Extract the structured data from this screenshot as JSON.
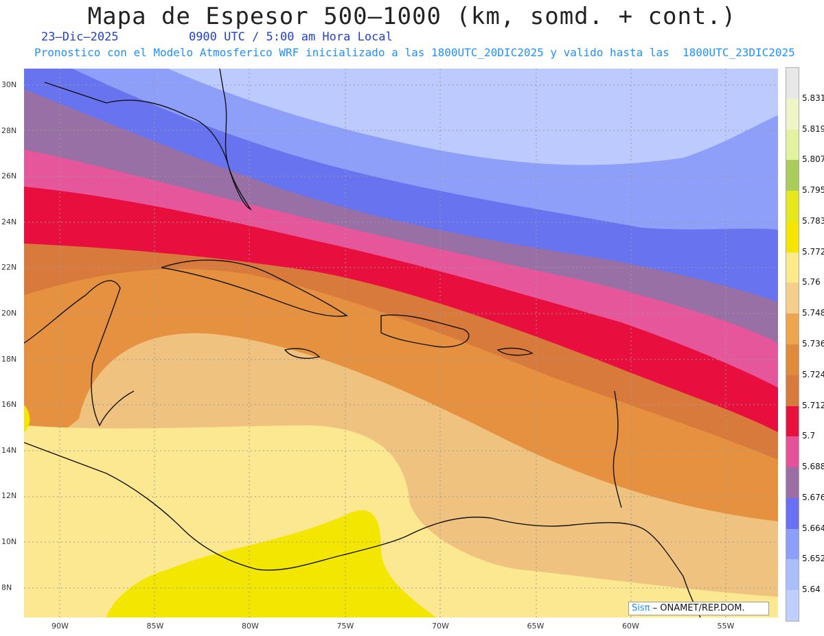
{
  "title": "Mapa de Espesor 500–1000 (km, somd. + cont.)",
  "date": "23–Dic–2025",
  "time": "0900 UTC / 5:00 am Hora Local",
  "subtitle": "Pronostico con el Modelo Atmosferico WRF inicializado a las 1800UTC_20DIC2025 y valido hasta las  1800UTC_23DIC2025",
  "credit": {
    "brand": "Sisπ",
    "text": "– ONAMET/REP.DOM."
  },
  "lat_labels": [
    "30N",
    "28N",
    "26N",
    "24N",
    "22N",
    "20N",
    "18N",
    "16N",
    "14N",
    "12N",
    "10N",
    "8N"
  ],
  "lon_labels": [
    "90W",
    "85W",
    "80W",
    "75W",
    "70W",
    "65W",
    "60W",
    "55W"
  ],
  "colorbar": {
    "labels": [
      "5.831",
      "5.819",
      "5.807",
      "5.795",
      "5.783",
      "5.772",
      "5.76",
      "5.748",
      "5.736",
      "5.724",
      "5.712",
      "5.7",
      "5.688",
      "5.676",
      "5.664",
      "5.652",
      "5.64"
    ],
    "colors": [
      "#e8e8e8",
      "#f0f5c8",
      "#e2f2a0",
      "#a9cc5a",
      "#e6e81e",
      "#f5e600",
      "#fbe98a",
      "#f3cf8b",
      "#eca64e",
      "#e08a3c",
      "#d77a3c",
      "#e8103c",
      "#e65299",
      "#9b6fa6",
      "#6a6ff5",
      "#8c9ffb",
      "#a8bffc",
      "#bfcfff"
    ]
  },
  "layers": {
    "colors": [
      "#bccafe",
      "#8d9ff9",
      "#6873f0",
      "#9870a5",
      "#e5569b",
      "#e80f3f",
      "#d87a3c",
      "#e6913f",
      "#efc37f",
      "#fbe890",
      "#f3e600"
    ]
  }
}
